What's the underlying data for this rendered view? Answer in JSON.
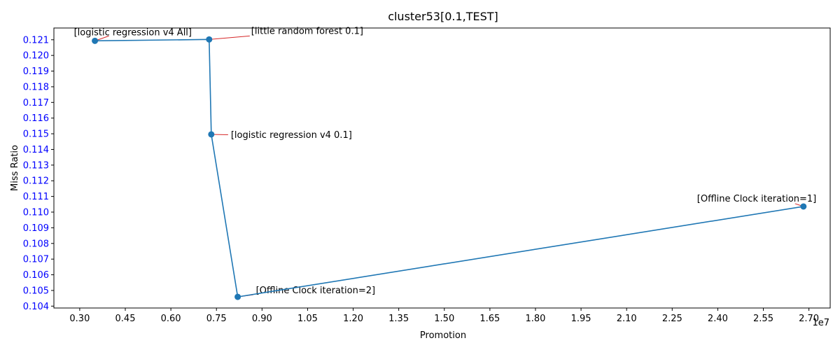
{
  "chart_data": {
    "type": "line",
    "title": "cluster53[0.1,TEST]",
    "xlabel": "Promotion",
    "ylabel": "Miss Ratio",
    "x_offset_label": "1e7",
    "xlim": [
      2150000,
      27700000
    ],
    "ylim": [
      0.10388,
      0.12175
    ],
    "x_ticks": [
      3000000,
      4500000,
      6000000,
      7500000,
      9000000,
      10500000,
      12000000,
      13500000,
      15000000,
      16500000,
      18000000,
      19500000,
      21000000,
      22500000,
      24000000,
      25500000,
      27000000
    ],
    "x_tick_labels": [
      "0.30",
      "0.45",
      "0.60",
      "0.75",
      "0.90",
      "1.05",
      "1.20",
      "1.35",
      "1.50",
      "1.65",
      "1.80",
      "1.95",
      "2.10",
      "2.25",
      "2.40",
      "2.55",
      "2.70"
    ],
    "y_ticks": [
      0.104,
      0.105,
      0.106,
      0.107,
      0.108,
      0.109,
      0.11,
      0.111,
      0.112,
      0.113,
      0.114,
      0.115,
      0.116,
      0.117,
      0.118,
      0.119,
      0.12,
      0.121
    ],
    "y_tick_labels": [
      "0.104",
      "0.105",
      "0.106",
      "0.107",
      "0.108",
      "0.109",
      "0.110",
      "0.111",
      "0.112",
      "0.113",
      "0.114",
      "0.115",
      "0.116",
      "0.117",
      "0.118",
      "0.119",
      "0.120",
      "0.121"
    ],
    "grid": false,
    "colors": {
      "line": "#1f77b4",
      "annotation_line": "#d62728",
      "ytick": "#0000ff"
    },
    "points": [
      {
        "x": 3500000,
        "y": 0.12093,
        "label": "[logistic regression v4 All]"
      },
      {
        "x": 7260000,
        "y": 0.12102,
        "label": "[little random forest 0.1]"
      },
      {
        "x": 7330000,
        "y": 0.11496,
        "label": "[logistic regression v4 0.1]"
      },
      {
        "x": 8200000,
        "y": 0.10459,
        "label": "[Offline Clock iteration=2]"
      },
      {
        "x": 26820000,
        "y": 0.11036,
        "label": "[Offline Clock iteration=1]"
      }
    ]
  }
}
